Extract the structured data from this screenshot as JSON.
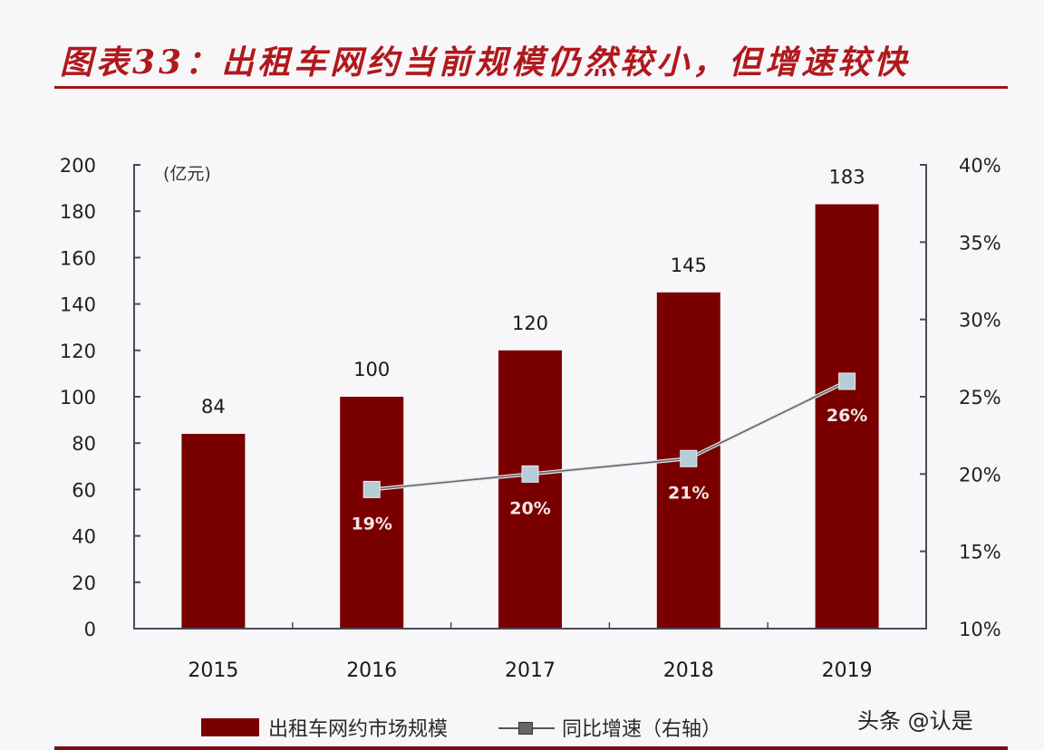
{
  "title": "图表33：出租车网约当前规模仍然较小，但增速较快",
  "watermark": "头条 @认是",
  "colors": {
    "bar": "#7a0000",
    "line": "#5a6a72",
    "marker": "#b6ccd6",
    "title": "#b0181c",
    "rule": "#9c1418"
  },
  "chart_data": {
    "type": "bar",
    "title": "图表33：出租车网约当前规模仍然较小，但增速较快",
    "categories": [
      "2015",
      "2016",
      "2017",
      "2018",
      "2019"
    ],
    "series": [
      {
        "name": "出租车网约市场规模",
        "type": "bar",
        "axis": "left",
        "values": [
          84,
          100,
          120,
          145,
          183
        ],
        "labels": [
          "84",
          "100",
          "120",
          "145",
          "183"
        ]
      },
      {
        "name": "同比增速（右轴）",
        "type": "line",
        "axis": "right",
        "values": [
          null,
          19,
          20,
          21,
          26
        ],
        "labels": [
          "",
          "19%",
          "20%",
          "21%",
          "26%"
        ]
      }
    ],
    "xlabel": "",
    "ylabel": "(亿元)",
    "ylim": [
      0,
      200
    ],
    "yticks": [
      "0",
      "20",
      "40",
      "60",
      "80",
      "100",
      "120",
      "140",
      "160",
      "180",
      "200"
    ],
    "y2label": "",
    "y2lim": [
      10,
      40
    ],
    "y2ticks": [
      "10%",
      "15%",
      "20%",
      "25%",
      "30%",
      "35%",
      "40%"
    ],
    "grid": false,
    "legend": {
      "position": "bottom",
      "entries": [
        "出租车网约市场规模",
        "同比增速（右轴）"
      ]
    }
  }
}
